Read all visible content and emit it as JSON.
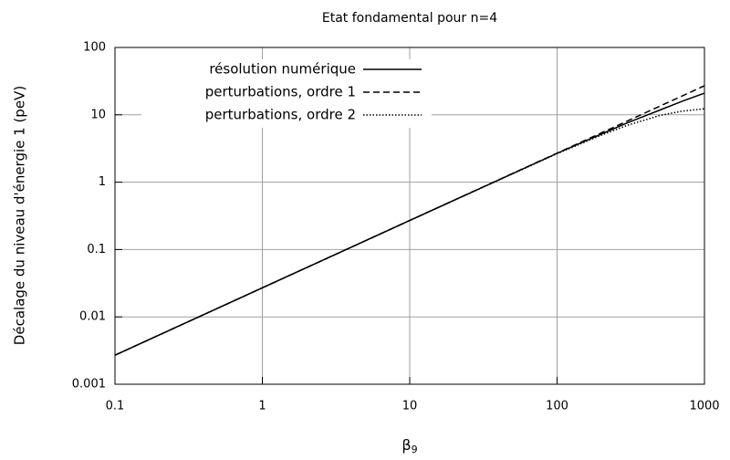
{
  "chart_data": {
    "type": "line",
    "title": "Etat fondamental pour n=4",
    "x_label": {
      "base": "β",
      "sub": "9"
    },
    "y_label": "Décalage du niveau d'énergie 1 (peV)",
    "x": [
      0.1,
      1,
      10,
      100,
      200,
      300,
      500,
      700,
      1000
    ],
    "series": [
      {
        "name": "résolution numérique",
        "color": "#000000",
        "style": "solid",
        "values": [
          0.0027,
          0.027,
          0.27,
          2.68,
          5.2,
          7.6,
          11.8,
          15.8,
          21
        ]
      },
      {
        "name": "perturbations, ordre 1",
        "color": "#000000",
        "style": "dashed",
        "values": [
          0.0027,
          0.027,
          0.27,
          2.7,
          5.4,
          8.1,
          13.5,
          18.9,
          27
        ]
      },
      {
        "name": "perturbations, ordre 2",
        "color": "#000000",
        "style": "dotted",
        "values": [
          0.0027,
          0.027,
          0.27,
          2.65,
          5.0,
          7.0,
          9.8,
          11.3,
          12.3
        ]
      }
    ],
    "xlim": [
      0.1,
      1000
    ],
    "ylim": [
      0.001,
      100
    ],
    "xticks": [
      0.1,
      1,
      10,
      100,
      1000
    ],
    "yticks": [
      0.001,
      0.01,
      0.1,
      1,
      10,
      100
    ],
    "xscale": "log",
    "yscale": "log",
    "grid": true,
    "legend": "upper left"
  }
}
